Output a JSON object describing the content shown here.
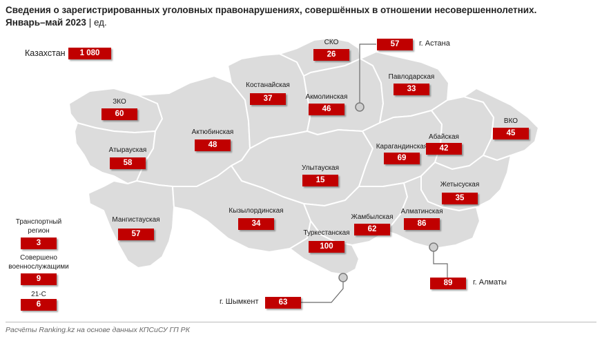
{
  "title": "Сведения о зарегистрированных уголовных правонарушениях, совершённых в отношении несовершеннолетних.",
  "subtitle_period": "Январь–май 2023",
  "subtitle_sep": " | ",
  "subtitle_unit": "ед.",
  "footer": "Расчёты Ranking.kz на основе данных КПСиСУ ГП РК",
  "colors": {
    "accent": "#c00000",
    "region_fill": "#dcdcdc",
    "region_border": "#ffffff"
  },
  "total": {
    "label": "Казахстан",
    "value": "1 080"
  },
  "regions": [
    {
      "name": "СКО",
      "value": "26"
    },
    {
      "name": "Костанайская",
      "value": "37"
    },
    {
      "name": "Акмолинская",
      "value": "46"
    },
    {
      "name": "Павлодарская",
      "value": "33"
    },
    {
      "name": "ЗКО",
      "value": "60"
    },
    {
      "name": "Актюбинская",
      "value": "48"
    },
    {
      "name": "Атырауская",
      "value": "58"
    },
    {
      "name": "Карагандинская",
      "value": "69"
    },
    {
      "name": "Абайская",
      "value": "42"
    },
    {
      "name": "ВКО",
      "value": "45"
    },
    {
      "name": "Улытауская",
      "value": "15"
    },
    {
      "name": "Жетысуская",
      "value": "35"
    },
    {
      "name": "Мангистауская",
      "value": "57"
    },
    {
      "name": "Кызылординская",
      "value": "34"
    },
    {
      "name": "Жамбылская",
      "value": "62"
    },
    {
      "name": "Алматинская",
      "value": "86"
    },
    {
      "name": "Туркестанская",
      "value": "100"
    }
  ],
  "cities": [
    {
      "name": "г. Астана",
      "value": "57"
    },
    {
      "name": "г. Алматы",
      "value": "89"
    },
    {
      "name": "г. Шымкент",
      "value": "63"
    }
  ],
  "side_items": [
    {
      "name": "Транспортный регион",
      "value": "3"
    },
    {
      "name": "Совершено военнослужащими",
      "value": "9"
    },
    {
      "name": "21-С",
      "value": "6"
    }
  ]
}
